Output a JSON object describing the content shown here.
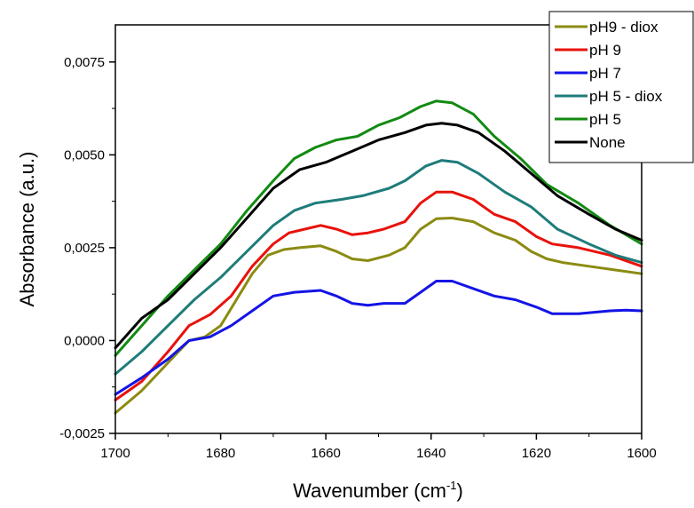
{
  "chart_data": {
    "type": "line",
    "xlabel": "Wavenumber (cm",
    "xlabel_sup": "-1",
    "xlabel_end": ")",
    "ylabel": "Absorbance (a.u.)",
    "xlim": [
      1700,
      1600
    ],
    "ylim": [
      -0.0025,
      0.0085
    ],
    "x_ticks": [
      1700,
      1680,
      1660,
      1640,
      1620,
      1600
    ],
    "x_tick_labels": [
      "1700",
      "1680",
      "1660",
      "1640",
      "1620",
      "1600"
    ],
    "y_ticks": [
      -0.0025,
      0.0,
      0.0025,
      0.005,
      0.0075
    ],
    "y_tick_labels": [
      "-0,0025",
      "0,0000",
      "0,0025",
      "0,0050",
      "0,0075"
    ],
    "grid": false,
    "legend_position": "top-right",
    "series": [
      {
        "name": "pH9 - diox",
        "color": "#8b8b12",
        "points": [
          [
            1700,
            -0.00195
          ],
          [
            1695,
            -0.00135
          ],
          [
            1690,
            -0.0006
          ],
          [
            1686,
            0.0
          ],
          [
            1683,
            0.0001
          ],
          [
            1680,
            0.0004
          ],
          [
            1677,
            0.0011
          ],
          [
            1674,
            0.0018
          ],
          [
            1671,
            0.0023
          ],
          [
            1668,
            0.00245
          ],
          [
            1665,
            0.0025
          ],
          [
            1661,
            0.00255
          ],
          [
            1658,
            0.0024
          ],
          [
            1655,
            0.0022
          ],
          [
            1652,
            0.00215
          ],
          [
            1648,
            0.0023
          ],
          [
            1645,
            0.0025
          ],
          [
            1642,
            0.003
          ],
          [
            1639,
            0.00328
          ],
          [
            1636,
            0.0033
          ],
          [
            1632,
            0.0032
          ],
          [
            1628,
            0.0029
          ],
          [
            1624,
            0.0027
          ],
          [
            1621,
            0.0024
          ],
          [
            1618,
            0.0022
          ],
          [
            1615,
            0.0021
          ],
          [
            1610,
            0.002
          ],
          [
            1605,
            0.0019
          ],
          [
            1600,
            0.0018
          ]
        ]
      },
      {
        "name": "pH 9",
        "color": "#e8120c",
        "points": [
          [
            1700,
            -0.0016
          ],
          [
            1695,
            -0.0011
          ],
          [
            1690,
            -0.0003
          ],
          [
            1686,
            0.0004
          ],
          [
            1682,
            0.0007
          ],
          [
            1678,
            0.0012
          ],
          [
            1674,
            0.002
          ],
          [
            1670,
            0.0026
          ],
          [
            1667,
            0.0029
          ],
          [
            1664,
            0.003
          ],
          [
            1661,
            0.0031
          ],
          [
            1658,
            0.003
          ],
          [
            1655,
            0.00285
          ],
          [
            1652,
            0.0029
          ],
          [
            1649,
            0.003
          ],
          [
            1645,
            0.0032
          ],
          [
            1642,
            0.0037
          ],
          [
            1639,
            0.004
          ],
          [
            1636,
            0.004
          ],
          [
            1632,
            0.0038
          ],
          [
            1628,
            0.0034
          ],
          [
            1624,
            0.0032
          ],
          [
            1620,
            0.0028
          ],
          [
            1617,
            0.0026
          ],
          [
            1612,
            0.0025
          ],
          [
            1606,
            0.0023
          ],
          [
            1600,
            0.002
          ]
        ]
      },
      {
        "name": "pH 7",
        "color": "#1414e6",
        "points": [
          [
            1700,
            -0.00145
          ],
          [
            1695,
            -0.001
          ],
          [
            1690,
            -0.0005
          ],
          [
            1686,
            0.0
          ],
          [
            1682,
            0.0001
          ],
          [
            1678,
            0.0004
          ],
          [
            1674,
            0.0008
          ],
          [
            1670,
            0.0012
          ],
          [
            1666,
            0.0013
          ],
          [
            1661,
            0.00135
          ],
          [
            1658,
            0.0012
          ],
          [
            1655,
            0.001
          ],
          [
            1652,
            0.00095
          ],
          [
            1649,
            0.001
          ],
          [
            1645,
            0.001
          ],
          [
            1642,
            0.0013
          ],
          [
            1639,
            0.0016
          ],
          [
            1636,
            0.0016
          ],
          [
            1632,
            0.0014
          ],
          [
            1628,
            0.0012
          ],
          [
            1624,
            0.0011
          ],
          [
            1620,
            0.0009
          ],
          [
            1617,
            0.00072
          ],
          [
            1612,
            0.00072
          ],
          [
            1606,
            0.0008
          ],
          [
            1603,
            0.00082
          ],
          [
            1600,
            0.0008
          ]
        ]
      },
      {
        "name": "pH 5 - diox",
        "color": "#1e7c7a",
        "points": [
          [
            1700,
            -0.0009
          ],
          [
            1695,
            -0.0003
          ],
          [
            1690,
            0.0004
          ],
          [
            1685,
            0.0011
          ],
          [
            1680,
            0.0017
          ],
          [
            1675,
            0.0024
          ],
          [
            1670,
            0.0031
          ],
          [
            1666,
            0.0035
          ],
          [
            1662,
            0.0037
          ],
          [
            1657,
            0.0038
          ],
          [
            1653,
            0.0039
          ],
          [
            1648,
            0.0041
          ],
          [
            1645,
            0.0043
          ],
          [
            1641,
            0.0047
          ],
          [
            1638,
            0.00485
          ],
          [
            1635,
            0.0048
          ],
          [
            1631,
            0.0045
          ],
          [
            1626,
            0.004
          ],
          [
            1621,
            0.0036
          ],
          [
            1616,
            0.003
          ],
          [
            1610,
            0.0026
          ],
          [
            1605,
            0.0023
          ],
          [
            1600,
            0.0021
          ]
        ]
      },
      {
        "name": "pH 5",
        "color": "#128a12",
        "points": [
          [
            1700,
            -0.0004
          ],
          [
            1695,
            0.0004
          ],
          [
            1690,
            0.0012
          ],
          [
            1685,
            0.0019
          ],
          [
            1680,
            0.0026
          ],
          [
            1675,
            0.0035
          ],
          [
            1670,
            0.0043
          ],
          [
            1666,
            0.0049
          ],
          [
            1662,
            0.0052
          ],
          [
            1658,
            0.0054
          ],
          [
            1654,
            0.0055
          ],
          [
            1650,
            0.0058
          ],
          [
            1646,
            0.006
          ],
          [
            1642,
            0.0063
          ],
          [
            1639,
            0.00645
          ],
          [
            1636,
            0.0064
          ],
          [
            1632,
            0.0061
          ],
          [
            1628,
            0.0055
          ],
          [
            1623,
            0.0049
          ],
          [
            1618,
            0.0042
          ],
          [
            1612,
            0.0037
          ],
          [
            1606,
            0.0031
          ],
          [
            1600,
            0.0026
          ]
        ]
      },
      {
        "name": "None",
        "color": "#000000",
        "points": [
          [
            1700,
            -0.0002
          ],
          [
            1695,
            0.0006
          ],
          [
            1690,
            0.0011
          ],
          [
            1685,
            0.0018
          ],
          [
            1680,
            0.0025
          ],
          [
            1675,
            0.0033
          ],
          [
            1670,
            0.0041
          ],
          [
            1665,
            0.0046
          ],
          [
            1660,
            0.0048
          ],
          [
            1655,
            0.0051
          ],
          [
            1650,
            0.0054
          ],
          [
            1645,
            0.0056
          ],
          [
            1641,
            0.0058
          ],
          [
            1638,
            0.00585
          ],
          [
            1635,
            0.0058
          ],
          [
            1631,
            0.0056
          ],
          [
            1626,
            0.0051
          ],
          [
            1621,
            0.0045
          ],
          [
            1616,
            0.0039
          ],
          [
            1610,
            0.0034
          ],
          [
            1605,
            0.003
          ],
          [
            1600,
            0.0027
          ]
        ]
      }
    ]
  }
}
